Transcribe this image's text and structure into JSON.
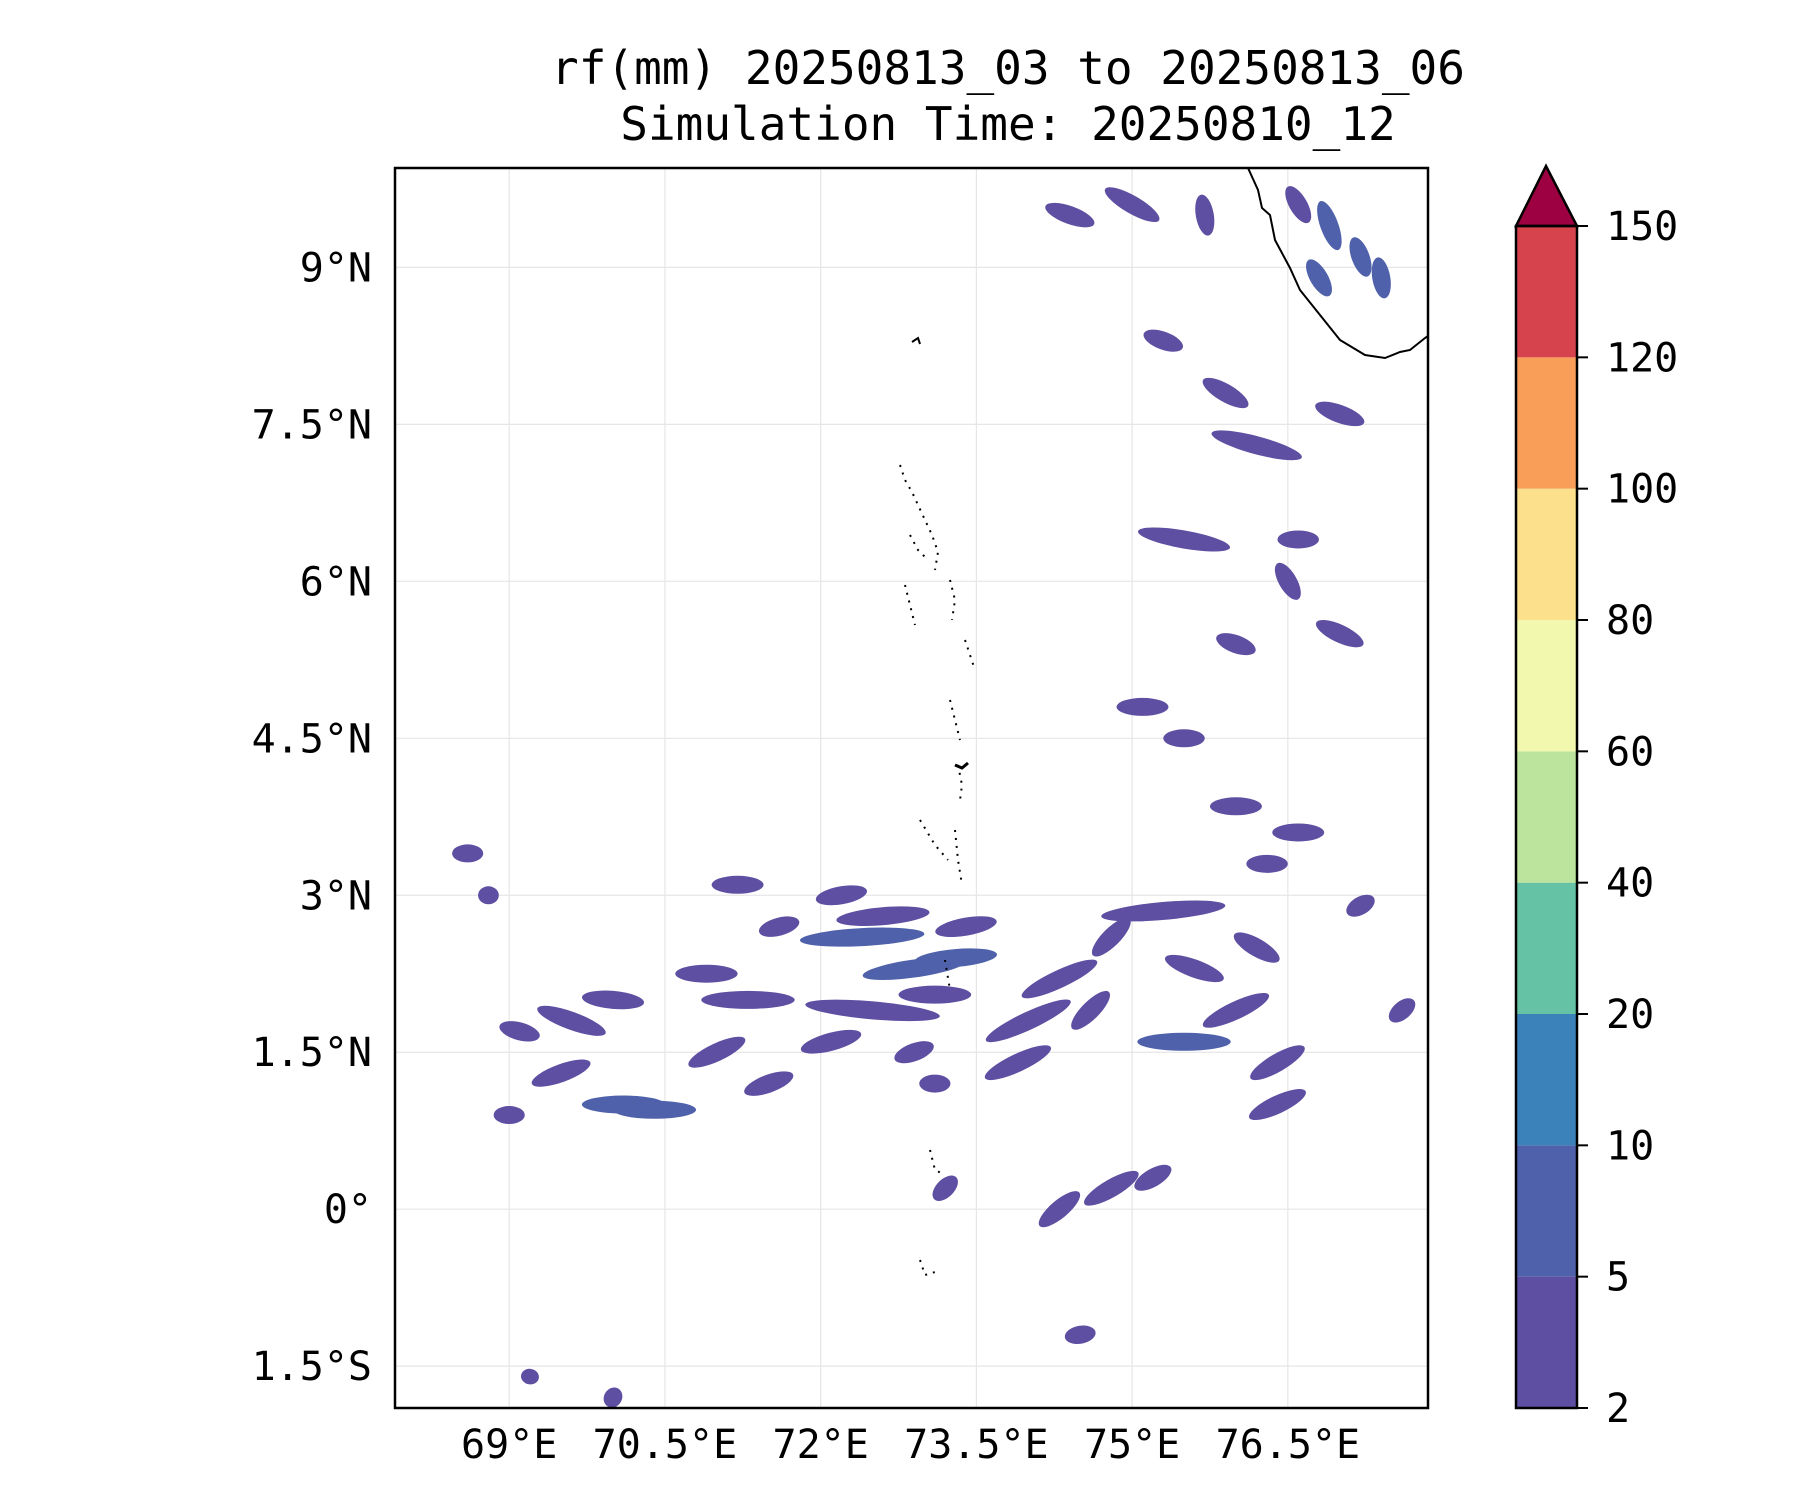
{
  "chart_data": {
    "type": "heatmap",
    "title": "rf(mm) 20250813_03 to 20250813_06",
    "subtitle": "Simulation Time: 20250810_12",
    "xlabel": "",
    "ylabel": "",
    "xlim": [
      67.9,
      77.85
    ],
    "ylim": [
      -1.9,
      9.95
    ],
    "x_ticks": [
      69,
      70.5,
      72,
      73.5,
      75,
      76.5
    ],
    "x_tick_labels": [
      "69°E",
      "70.5°E",
      "72°E",
      "73.5°E",
      "75°E",
      "76.5°E"
    ],
    "y_ticks": [
      9,
      7.5,
      6,
      4.5,
      3,
      1.5,
      0,
      -1.5
    ],
    "y_tick_labels": [
      "9°N",
      "7.5°N",
      "6°N",
      "4.5°N",
      "3°N",
      "1.5°N",
      "0°",
      "1.5°S"
    ],
    "grid": true,
    "colorbar": {
      "levels": [
        2,
        5,
        10,
        20,
        40,
        60,
        80,
        100,
        120,
        150
      ],
      "level_labels": [
        "2",
        "5",
        "10",
        "20",
        "40",
        "60",
        "80",
        "100",
        "120",
        "150"
      ],
      "colors": [
        "#5e4fa2",
        "#4f61ab",
        "#3b82bb",
        "#66c2a5",
        "#bce49c",
        "#f2f9ae",
        "#fde08b",
        "#f99e59",
        "#d7434d"
      ],
      "extend_color": "#9e0142",
      "extend": "max"
    },
    "rain_cells": [
      {
        "lon": 68.6,
        "lat": 3.4,
        "len": 0.3,
        "ang": 0,
        "mm": 3
      },
      {
        "lon": 68.8,
        "lat": 3.0,
        "len": 0.2,
        "ang": 0,
        "mm": 3
      },
      {
        "lon": 69.1,
        "lat": 1.7,
        "len": 0.4,
        "ang": -15,
        "mm": 3
      },
      {
        "lon": 69.6,
        "lat": 1.8,
        "len": 0.7,
        "ang": -20,
        "mm": 4
      },
      {
        "lon": 70.0,
        "lat": 2.0,
        "len": 0.6,
        "ang": -5,
        "mm": 4
      },
      {
        "lon": 69.5,
        "lat": 1.3,
        "len": 0.6,
        "ang": 20,
        "mm": 3
      },
      {
        "lon": 70.1,
        "lat": 1.0,
        "len": 0.8,
        "ang": 0,
        "mm": 5
      },
      {
        "lon": 70.4,
        "lat": 0.95,
        "len": 0.8,
        "ang": 0,
        "mm": 6
      },
      {
        "lon": 69.0,
        "lat": 0.9,
        "len": 0.3,
        "ang": 0,
        "mm": 3
      },
      {
        "lon": 71.2,
        "lat": 3.1,
        "len": 0.5,
        "ang": 0,
        "mm": 3
      },
      {
        "lon": 71.3,
        "lat": 2.0,
        "len": 0.9,
        "ang": 0,
        "mm": 3
      },
      {
        "lon": 70.9,
        "lat": 2.25,
        "len": 0.6,
        "ang": 0,
        "mm": 3
      },
      {
        "lon": 71.6,
        "lat": 2.7,
        "len": 0.4,
        "ang": 15,
        "mm": 3
      },
      {
        "lon": 71.0,
        "lat": 1.5,
        "len": 0.6,
        "ang": 25,
        "mm": 3
      },
      {
        "lon": 71.5,
        "lat": 1.2,
        "len": 0.5,
        "ang": 20,
        "mm": 3
      },
      {
        "lon": 72.4,
        "lat": 2.6,
        "len": 1.2,
        "ang": 3,
        "mm": 5
      },
      {
        "lon": 72.6,
        "lat": 2.8,
        "len": 0.9,
        "ang": 5,
        "mm": 4
      },
      {
        "lon": 72.9,
        "lat": 2.3,
        "len": 1.0,
        "ang": 8,
        "mm": 6
      },
      {
        "lon": 72.5,
        "lat": 1.9,
        "len": 1.3,
        "ang": -5,
        "mm": 4
      },
      {
        "lon": 73.3,
        "lat": 2.4,
        "len": 0.8,
        "ang": 5,
        "mm": 5
      },
      {
        "lon": 73.1,
        "lat": 2.05,
        "len": 0.7,
        "ang": 0,
        "mm": 4
      },
      {
        "lon": 72.2,
        "lat": 3.0,
        "len": 0.5,
        "ang": 10,
        "mm": 3
      },
      {
        "lon": 73.4,
        "lat": 2.7,
        "len": 0.6,
        "ang": 10,
        "mm": 4
      },
      {
        "lon": 72.1,
        "lat": 1.6,
        "len": 0.6,
        "ang": 15,
        "mm": 3
      },
      {
        "lon": 72.9,
        "lat": 1.5,
        "len": 0.4,
        "ang": 20,
        "mm": 3
      },
      {
        "lon": 73.1,
        "lat": 1.2,
        "len": 0.3,
        "ang": 0,
        "mm": 3
      },
      {
        "lon": 74.0,
        "lat": 1.8,
        "len": 0.9,
        "ang": 25,
        "mm": 4
      },
      {
        "lon": 74.3,
        "lat": 2.2,
        "len": 0.8,
        "ang": 25,
        "mm": 4
      },
      {
        "lon": 73.9,
        "lat": 1.4,
        "len": 0.7,
        "ang": 25,
        "mm": 4
      },
      {
        "lon": 74.6,
        "lat": 1.9,
        "len": 0.5,
        "ang": 45,
        "mm": 3
      },
      {
        "lon": 74.8,
        "lat": 2.6,
        "len": 0.5,
        "ang": 45,
        "mm": 3
      },
      {
        "lon": 75.3,
        "lat": 2.85,
        "len": 1.2,
        "ang": 5,
        "mm": 4
      },
      {
        "lon": 75.5,
        "lat": 1.6,
        "len": 0.9,
        "ang": 0,
        "mm": 5
      },
      {
        "lon": 76.0,
        "lat": 1.9,
        "len": 0.7,
        "ang": 25,
        "mm": 4
      },
      {
        "lon": 76.4,
        "lat": 1.4,
        "len": 0.6,
        "ang": 30,
        "mm": 4
      },
      {
        "lon": 76.4,
        "lat": 1.0,
        "len": 0.6,
        "ang": 25,
        "mm": 4
      },
      {
        "lon": 75.6,
        "lat": 2.3,
        "len": 0.6,
        "ang": -20,
        "mm": 3
      },
      {
        "lon": 76.2,
        "lat": 2.5,
        "len": 0.5,
        "ang": -30,
        "mm": 3
      },
      {
        "lon": 76.6,
        "lat": 3.6,
        "len": 0.5,
        "ang": 0,
        "mm": 3
      },
      {
        "lon": 76.3,
        "lat": 3.3,
        "len": 0.4,
        "ang": 0,
        "mm": 3
      },
      {
        "lon": 77.6,
        "lat": 1.9,
        "len": 0.3,
        "ang": 40,
        "mm": 3
      },
      {
        "lon": 77.2,
        "lat": 2.9,
        "len": 0.3,
        "ang": 30,
        "mm": 3
      },
      {
        "lon": 75.1,
        "lat": 4.8,
        "len": 0.5,
        "ang": 0,
        "mm": 3
      },
      {
        "lon": 75.5,
        "lat": 4.5,
        "len": 0.4,
        "ang": 0,
        "mm": 3
      },
      {
        "lon": 76.0,
        "lat": 5.4,
        "len": 0.4,
        "ang": -20,
        "mm": 3
      },
      {
        "lon": 77.0,
        "lat": 5.5,
        "len": 0.5,
        "ang": -25,
        "mm": 3
      },
      {
        "lon": 76.0,
        "lat": 3.85,
        "len": 0.5,
        "ang": 0,
        "mm": 3
      },
      {
        "lon": 75.5,
        "lat": 6.4,
        "len": 0.9,
        "ang": -10,
        "mm": 3
      },
      {
        "lon": 76.2,
        "lat": 7.3,
        "len": 0.9,
        "ang": -15,
        "mm": 3
      },
      {
        "lon": 76.6,
        "lat": 6.4,
        "len": 0.4,
        "ang": 0,
        "mm": 3
      },
      {
        "lon": 76.5,
        "lat": 6.0,
        "len": 0.4,
        "ang": -60,
        "mm": 3
      },
      {
        "lon": 75.9,
        "lat": 7.8,
        "len": 0.5,
        "ang": -30,
        "mm": 3
      },
      {
        "lon": 75.3,
        "lat": 8.3,
        "len": 0.4,
        "ang": -20,
        "mm": 3
      },
      {
        "lon": 76.8,
        "lat": 8.9,
        "len": 0.4,
        "ang": -60,
        "mm": 5
      },
      {
        "lon": 76.9,
        "lat": 9.4,
        "len": 0.5,
        "ang": -70,
        "mm": 6
      },
      {
        "lon": 77.2,
        "lat": 9.1,
        "len": 0.4,
        "ang": -70,
        "mm": 6
      },
      {
        "lon": 77.4,
        "lat": 8.9,
        "len": 0.4,
        "ang": -80,
        "mm": 6
      },
      {
        "lon": 76.6,
        "lat": 9.6,
        "len": 0.4,
        "ang": -60,
        "mm": 4
      },
      {
        "lon": 75.0,
        "lat": 9.6,
        "len": 0.6,
        "ang": -30,
        "mm": 3
      },
      {
        "lon": 74.4,
        "lat": 9.5,
        "len": 0.5,
        "ang": -20,
        "mm": 3
      },
      {
        "lon": 75.7,
        "lat": 9.5,
        "len": 0.4,
        "ang": -80,
        "mm": 3
      },
      {
        "lon": 77.0,
        "lat": 7.6,
        "len": 0.5,
        "ang": -20,
        "mm": 3
      },
      {
        "lon": 74.8,
        "lat": 0.2,
        "len": 0.6,
        "ang": 30,
        "mm": 3
      },
      {
        "lon": 74.3,
        "lat": 0.0,
        "len": 0.5,
        "ang": 40,
        "mm": 3
      },
      {
        "lon": 75.2,
        "lat": 0.3,
        "len": 0.4,
        "ang": 30,
        "mm": 3
      },
      {
        "lon": 74.5,
        "lat": -1.2,
        "len": 0.3,
        "ang": 10,
        "mm": 3
      },
      {
        "lon": 73.2,
        "lat": 0.2,
        "len": 0.3,
        "ang": 45,
        "mm": 3
      },
      {
        "lon": 70.0,
        "lat": -1.8,
        "len": 0.2,
        "ang": 60,
        "mm": 3
      },
      {
        "lon": 69.2,
        "lat": -1.6,
        "len": 0.15,
        "ang": 80,
        "mm": 3
      }
    ]
  }
}
